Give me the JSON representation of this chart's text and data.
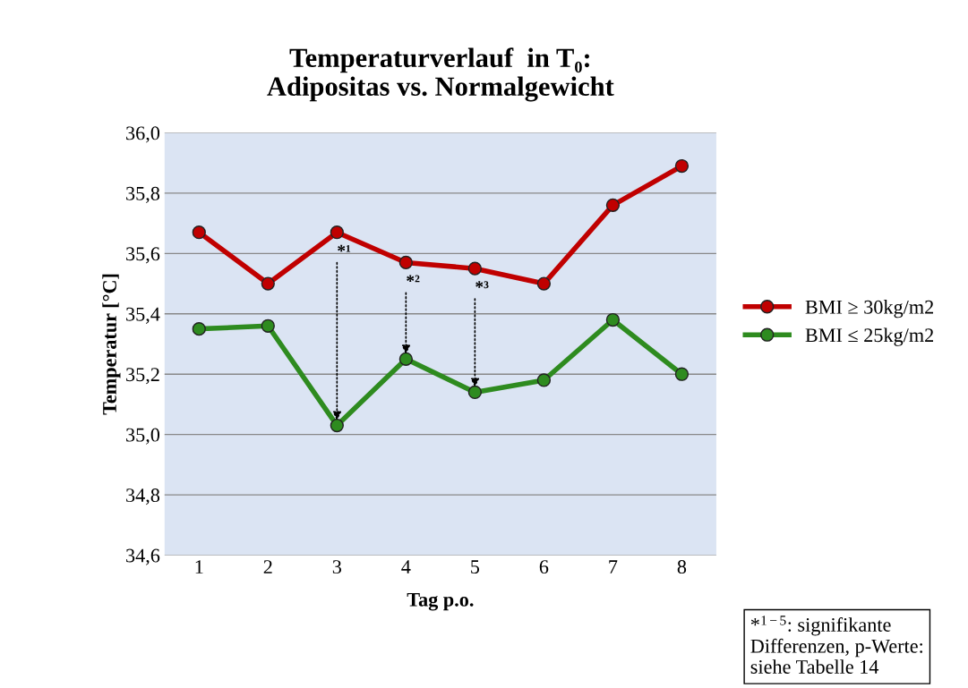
{
  "chart_data": {
    "type": "line",
    "title": "Temperaturverlauf  in T₀:\nAdipositas vs. Normalgewicht",
    "xlabel": "Tag p.o.",
    "ylabel": "Temperatur [°C]",
    "categories": [
      "1",
      "2",
      "3",
      "4",
      "5",
      "6",
      "7",
      "8"
    ],
    "series": [
      {
        "name": "BMI ≥ 30kg/m2",
        "color": "#c00000",
        "values": [
          35.67,
          35.5,
          35.67,
          35.57,
          35.55,
          35.5,
          35.76,
          35.89
        ]
      },
      {
        "name": "BMI ≤ 25kg/m2",
        "color": "#2e8b1f",
        "values": [
          35.35,
          35.36,
          35.03,
          35.25,
          35.14,
          35.18,
          35.38,
          35.2
        ]
      }
    ],
    "ylim": [
      34.6,
      36.0
    ],
    "yticks": [
      {
        "value": 34.6,
        "label": "34,6"
      },
      {
        "value": 34.8,
        "label": "34,8"
      },
      {
        "value": 35.0,
        "label": "35,0"
      },
      {
        "value": 35.2,
        "label": "35,2"
      },
      {
        "value": 35.4,
        "label": "35,4"
      },
      {
        "value": 35.6,
        "label": "35,6"
      },
      {
        "value": 35.8,
        "label": "35,8"
      },
      {
        "value": 36.0,
        "label": "36,0"
      }
    ],
    "grid": "y",
    "legend": "right",
    "marker": "circle",
    "line_style": "solid",
    "annotations": [
      {
        "text": "*¹",
        "x": "3",
        "y": 35.03
      },
      {
        "text": "*²",
        "x": "4",
        "y": 35.25
      },
      {
        "text": "*³",
        "x": "5",
        "y": 35.14
      },
      "*$^{1−5}$: signifikante\nDifferenzen, p-Werte:\nsiehe Tabelle 14"
    ]
  }
}
